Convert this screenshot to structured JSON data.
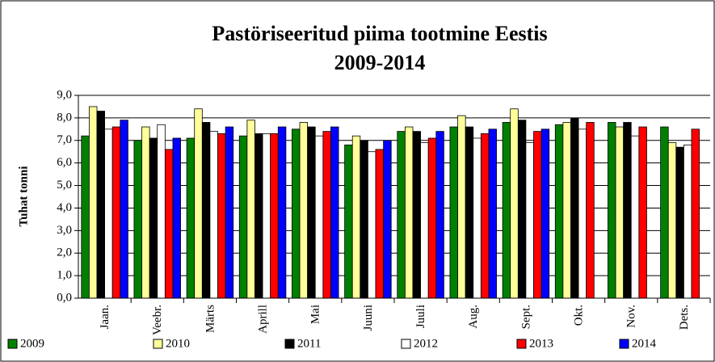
{
  "chart_data": {
    "type": "bar",
    "title": "Pastöriseeritud piima tootmine Eestis",
    "subtitle": "2009-2014",
    "y_label": "Tuhat tonni",
    "categories": [
      "Jaan.",
      "Veebr.",
      "Märts",
      "Aprill",
      "Mai",
      "Juuni",
      "Juuli",
      "Aug.",
      "Sept.",
      "Okt.",
      "Nov.",
      "Dets."
    ],
    "series": [
      {
        "name": "2009",
        "color": "#008000",
        "values": [
          7.2,
          7.0,
          7.1,
          7.2,
          7.5,
          6.8,
          7.4,
          7.6,
          7.8,
          7.7,
          7.8,
          7.6
        ]
      },
      {
        "name": "2010",
        "color": "#ffff99",
        "values": [
          8.5,
          7.6,
          8.4,
          7.9,
          7.8,
          7.2,
          7.6,
          8.1,
          8.4,
          7.8,
          7.6,
          6.9
        ]
      },
      {
        "name": "2011",
        "color": "#000000",
        "values": [
          8.3,
          7.1,
          7.8,
          7.3,
          7.6,
          7.0,
          7.4,
          7.6,
          7.9,
          8.0,
          7.8,
          6.7
        ]
      },
      {
        "name": "2012",
        "color": "#ffffff",
        "values": [
          7.5,
          7.7,
          7.4,
          7.3,
          7.2,
          6.5,
          6.9,
          7.1,
          6.9,
          7.5,
          7.2,
          6.8
        ]
      },
      {
        "name": "2013",
        "color": "#ff0000",
        "values": [
          7.6,
          6.6,
          7.3,
          7.3,
          7.4,
          6.6,
          7.1,
          7.3,
          7.4,
          7.8,
          7.6,
          7.5
        ]
      },
      {
        "name": "2014",
        "color": "#0000ff",
        "values": [
          7.9,
          7.1,
          7.6,
          7.6,
          7.6,
          7.0,
          7.4,
          7.5,
          7.5,
          null,
          null,
          null
        ]
      }
    ],
    "ylim": [
      0,
      9
    ],
    "yticks": [
      {
        "value": 0,
        "label": "0,0"
      },
      {
        "value": 1,
        "label": "1,0"
      },
      {
        "value": 2,
        "label": "2,0"
      },
      {
        "value": 3,
        "label": "3,0"
      },
      {
        "value": 4,
        "label": "4,0"
      },
      {
        "value": 5,
        "label": "5,0"
      },
      {
        "value": 6,
        "label": "6,0"
      },
      {
        "value": 7,
        "label": "7,0"
      },
      {
        "value": 8,
        "label": "8,0"
      },
      {
        "value": 9,
        "label": "9,0"
      }
    ],
    "grid": true,
    "legend": "bottom"
  }
}
